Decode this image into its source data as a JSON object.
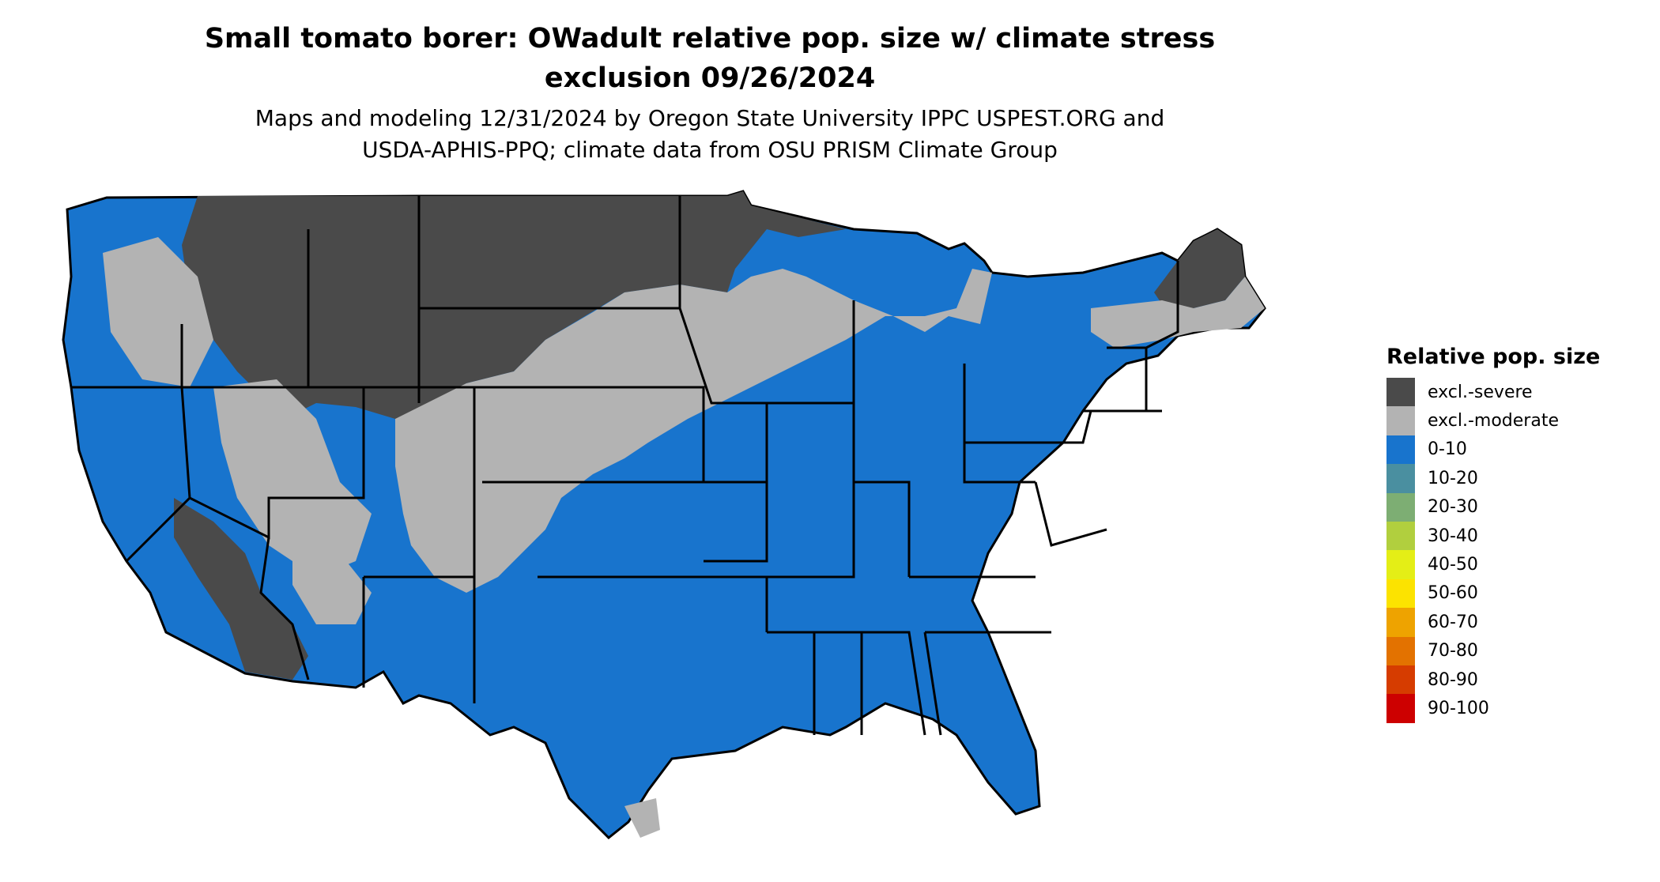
{
  "title": {
    "line1": "Small tomato borer: OWadult relative pop. size w/ climate stress",
    "line2": "exclusion 09/26/2024"
  },
  "subtitle": {
    "line1": "Maps and modeling 12/31/2024 by Oregon State University IPPC USPEST.ORG and",
    "line2": "USDA-APHIS-PPQ; climate data from OSU PRISM Climate Group"
  },
  "legend": {
    "title": "Relative pop. size",
    "items": [
      {
        "label": "excl.-severe",
        "color": "#4a4a4a"
      },
      {
        "label": "excl.-moderate",
        "color": "#b3b3b3"
      },
      {
        "label": "0-10",
        "color": "#1874cd"
      },
      {
        "label": "10-20",
        "color": "#4a8fa0"
      },
      {
        "label": "20-30",
        "color": "#7dae73"
      },
      {
        "label": "30-40",
        "color": "#b1cf3e"
      },
      {
        "label": "40-50",
        "color": "#e4ee16"
      },
      {
        "label": "50-60",
        "color": "#fce300"
      },
      {
        "label": "60-70",
        "color": "#eea300"
      },
      {
        "label": "70-80",
        "color": "#e37200"
      },
      {
        "label": "80-90",
        "color": "#d63c00"
      },
      {
        "label": "90-100",
        "color": "#cd0000"
      }
    ]
  },
  "map": {
    "region_colors": {
      "severe": "#4a4a4a",
      "moderate": "#b3b3b3",
      "low": "#1874cd",
      "border": "#000000"
    }
  }
}
